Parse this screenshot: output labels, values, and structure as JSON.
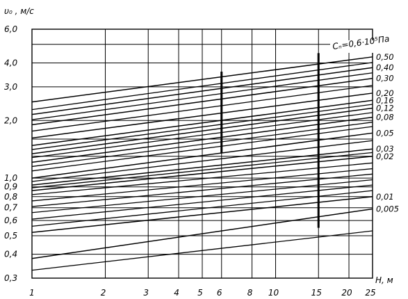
{
  "chart_data": {
    "type": "line",
    "ylabel": "υ₀ , м/с",
    "xlabel": "Н, м",
    "x_scale": "log",
    "y_scale": "log",
    "xlim": [
      1,
      25
    ],
    "ylim": [
      0.3,
      6.0
    ],
    "grid": true,
    "x_ticks": [
      {
        "value": 1,
        "label": "1"
      },
      {
        "value": 2,
        "label": "2"
      },
      {
        "value": 3,
        "label": "3"
      },
      {
        "value": 4,
        "label": "4"
      },
      {
        "value": 5,
        "label": "5"
      },
      {
        "value": 6,
        "label": "6"
      },
      {
        "value": 8,
        "label": "8"
      },
      {
        "value": 10,
        "label": "10"
      },
      {
        "value": 15,
        "label": "15"
      },
      {
        "value": 20,
        "label": "20"
      },
      {
        "value": 25,
        "label": "25"
      }
    ],
    "y_ticks": [
      {
        "value": 0.3,
        "label": "0,3"
      },
      {
        "value": 0.4,
        "label": "0,4"
      },
      {
        "value": 0.5,
        "label": "0,5"
      },
      {
        "value": 0.6,
        "label": "0,6"
      },
      {
        "value": 0.7,
        "label": "0,7"
      },
      {
        "value": 0.8,
        "label": "0,8"
      },
      {
        "value": 0.9,
        "label": "0,9"
      },
      {
        "value": 1.0,
        "label": "1,0"
      },
      {
        "value": 2.0,
        "label": "2,0"
      },
      {
        "value": 3.0,
        "label": "3,0"
      },
      {
        "value": 4.0,
        "label": "4,0"
      },
      {
        "value": 6.0,
        "label": "6,0"
      }
    ],
    "extra_h_grid": [
      1.3,
      1.6,
      5.0
    ],
    "annotation": "Cₙ=0,6·10⁵Па",
    "labeled_series": [
      {
        "label": "0,50",
        "y_at_1": 2.5,
        "y_at_25": 4.3
      },
      {
        "label": "0,40",
        "y_at_1": 2.15,
        "y_at_25": 3.78
      },
      {
        "label": "0,30",
        "y_at_1": 1.9,
        "y_at_25": 3.32
      },
      {
        "label": "0,20",
        "y_at_1": 1.62,
        "y_at_25": 2.78
      },
      {
        "label": "0,16",
        "y_at_1": 1.48,
        "y_at_25": 2.55
      },
      {
        "label": "0,12",
        "y_at_1": 1.34,
        "y_at_25": 2.32
      },
      {
        "label": "0,08",
        "y_at_1": 1.21,
        "y_at_25": 2.08
      },
      {
        "label": "0,05",
        "y_at_1": 1.0,
        "y_at_25": 1.72
      },
      {
        "label": "0,03",
        "y_at_1": 0.92,
        "y_at_25": 1.42
      },
      {
        "label": "0,02",
        "y_at_1": 0.86,
        "y_at_25": 1.3
      },
      {
        "label": "0,01",
        "y_at_1": 0.52,
        "y_at_25": 0.8
      },
      {
        "label": "0,005",
        "y_at_1": 0.38,
        "y_at_25": 0.69
      }
    ],
    "unlabeled_series": [
      {
        "y_at_1": 2.28,
        "y_at_25": 4.02
      },
      {
        "y_at_1": 2.02,
        "y_at_25": 3.55
      },
      {
        "y_at_1": 1.76,
        "y_at_25": 3.05
      },
      {
        "y_at_1": 1.41,
        "y_at_25": 2.43
      },
      {
        "y_at_1": 1.28,
        "y_at_25": 2.2
      },
      {
        "y_at_1": 1.15,
        "y_at_25": 1.96
      },
      {
        "y_at_1": 1.09,
        "y_at_25": 1.86
      },
      {
        "y_at_1": 0.96,
        "y_at_25": 1.57
      },
      {
        "y_at_1": 0.89,
        "y_at_25": 1.36
      },
      {
        "y_at_1": 0.82,
        "y_at_25": 1.2
      },
      {
        "y_at_1": 0.76,
        "y_at_25": 1.12
      },
      {
        "y_at_1": 0.71,
        "y_at_25": 1.05
      },
      {
        "y_at_1": 0.66,
        "y_at_25": 0.98
      },
      {
        "y_at_1": 0.61,
        "y_at_25": 0.92
      },
      {
        "y_at_1": 0.56,
        "y_at_25": 0.86
      },
      {
        "y_at_1": 0.33,
        "y_at_25": 0.53
      }
    ],
    "highlight_segments": [
      {
        "x": 6,
        "y1": 1.35,
        "y2": 3.6
      },
      {
        "x": 15,
        "y1": 0.55,
        "y2": 4.5
      }
    ]
  }
}
